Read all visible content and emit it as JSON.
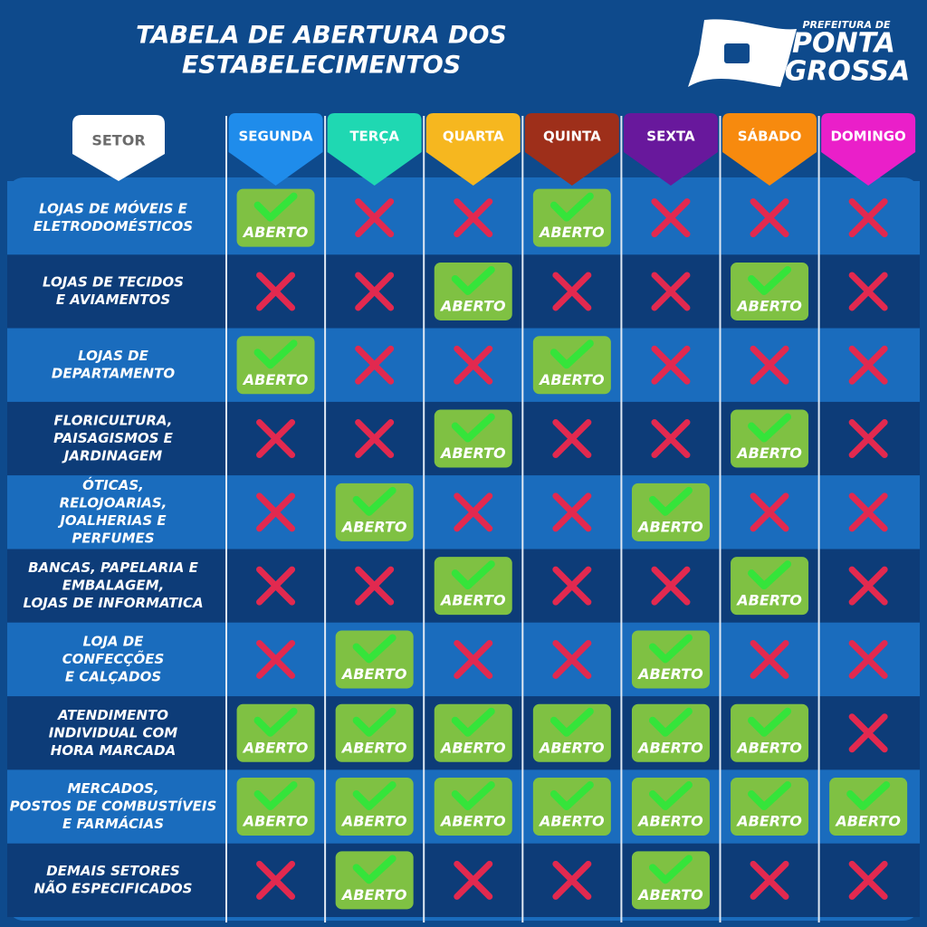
{
  "header": {
    "title": [
      "TABELA DE ABERTURA DOS",
      "ESTABELECIMENTOS"
    ],
    "logo": {
      "top": "PREFEITURA DE",
      "line1": "PONTA",
      "line2": "GROSSA"
    }
  },
  "table": {
    "sector_header": "SETOR",
    "open_label": "ABERTO",
    "days": [
      {
        "name": "SEGUNDA",
        "color": "#1f8ceb"
      },
      {
        "name": "TERÇA",
        "color": "#1fd8b2"
      },
      {
        "name": "QUARTA",
        "color": "#f6b71f"
      },
      {
        "name": "QUINTA",
        "color": "#9e2f1a"
      },
      {
        "name": "SEXTA",
        "color": "#68189c"
      },
      {
        "name": "SÁBADO",
        "color": "#f78a0e"
      },
      {
        "name": "DOMINGO",
        "color": "#ea1fc9"
      }
    ],
    "rows": [
      {
        "sector": [
          "LOJAS DE MÓVEIS E",
          "ELETRODOMÉSTICOS"
        ],
        "cells": [
          true,
          false,
          false,
          true,
          false,
          false,
          false
        ]
      },
      {
        "sector": [
          "LOJAS DE TECIDOS",
          "E AVIAMENTOS"
        ],
        "cells": [
          false,
          false,
          true,
          false,
          false,
          true,
          false
        ]
      },
      {
        "sector": [
          "LOJAS DE",
          "DEPARTAMENTO"
        ],
        "cells": [
          true,
          false,
          false,
          true,
          false,
          false,
          false
        ]
      },
      {
        "sector": [
          "FLORICULTURA,",
          "PAISAGISMOS E",
          "JARDINAGEM"
        ],
        "cells": [
          false,
          false,
          true,
          false,
          false,
          true,
          false
        ]
      },
      {
        "sector": [
          "ÓTICAS,",
          "RELOJOARIAS,",
          "JOALHERIAS E",
          "PERFUMES"
        ],
        "cells": [
          false,
          true,
          false,
          false,
          true,
          false,
          false
        ]
      },
      {
        "sector": [
          "BANCAS, PAPELARIA E",
          "EMBALAGEM,",
          "LOJAS DE INFORMATICA"
        ],
        "cells": [
          false,
          false,
          true,
          false,
          false,
          true,
          false
        ]
      },
      {
        "sector": [
          "LOJA DE",
          "CONFECÇÕES",
          "E CALÇADOS"
        ],
        "cells": [
          false,
          true,
          false,
          false,
          true,
          false,
          false
        ]
      },
      {
        "sector": [
          "ATENDIMENTO",
          "INDIVIDUAL COM",
          "HORA MARCADA"
        ],
        "cells": [
          true,
          true,
          true,
          true,
          true,
          true,
          false
        ]
      },
      {
        "sector": [
          "MERCADOS,",
          "POSTOS DE COMBUSTÍVEIS",
          "E FARMÁCIAS"
        ],
        "cells": [
          true,
          true,
          true,
          true,
          true,
          true,
          true
        ]
      },
      {
        "sector": [
          "DEMAIS SETORES",
          "NÃO ESPECIFICADOS"
        ],
        "cells": [
          false,
          true,
          false,
          false,
          true,
          false,
          false
        ]
      }
    ]
  }
}
